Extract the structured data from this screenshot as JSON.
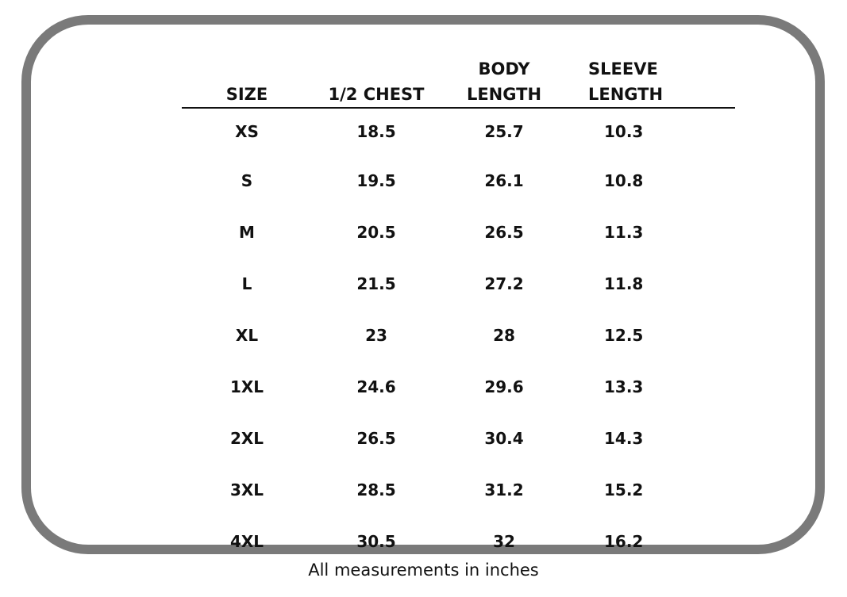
{
  "table": {
    "headers": {
      "size": "SIZE",
      "chest": "1/2 CHEST",
      "body_length": "BODY\nLENGTH",
      "sleeve_length": "SLEEVE\nLENGTH"
    },
    "rows": [
      {
        "size": "XS",
        "chest": "18.5",
        "body_length": "25.7",
        "sleeve_length": "10.3"
      },
      {
        "size": "S",
        "chest": "19.5",
        "body_length": "26.1",
        "sleeve_length": "10.8"
      },
      {
        "size": "M",
        "chest": "20.5",
        "body_length": "26.5",
        "sleeve_length": "11.3"
      },
      {
        "size": "L",
        "chest": "21.5",
        "body_length": "27.2",
        "sleeve_length": "11.8"
      },
      {
        "size": "XL",
        "chest": "23",
        "body_length": "28",
        "sleeve_length": "12.5"
      },
      {
        "size": "1XL",
        "chest": "24.6",
        "body_length": "29.6",
        "sleeve_length": "13.3"
      },
      {
        "size": "2XL",
        "chest": "26.5",
        "body_length": "30.4",
        "sleeve_length": "14.3"
      },
      {
        "size": "3XL",
        "chest": "28.5",
        "body_length": "31.2",
        "sleeve_length": "15.2"
      },
      {
        "size": "4XL",
        "chest": "30.5",
        "body_length": "32",
        "sleeve_length": "16.2"
      }
    ]
  },
  "caption": "All measurements in inches",
  "colors": {
    "frame_border": "#7a7a7a",
    "text": "#111111",
    "background": "#ffffff"
  }
}
